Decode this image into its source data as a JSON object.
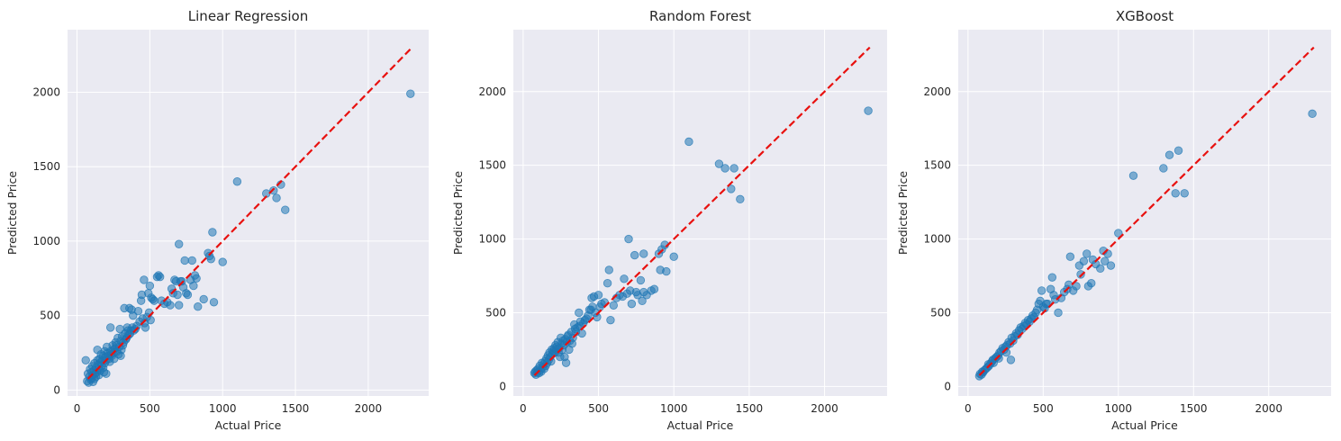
{
  "figure": {
    "background": "#ffffff",
    "plot_background": "#eaeaf2",
    "grid_color": "#ffffff",
    "point_color": "#1f77b4",
    "ideal_line_color": "#e8110f"
  },
  "chart_data": [
    {
      "type": "scatter",
      "title": "Linear Regression",
      "xlabel": "Actual Price",
      "ylabel": "Predicted Price",
      "xlim": [
        -65,
        2415
      ],
      "ylim": [
        -40,
        2420
      ],
      "xticks": [
        0,
        500,
        1000,
        1500,
        2000
      ],
      "yticks": [
        0,
        500,
        1000,
        1500,
        2000
      ],
      "grid": true,
      "reference_line": {
        "x": [
          75,
          2300
        ],
        "y": [
          75,
          2300
        ],
        "style": "dashed"
      },
      "points": [
        [
          60,
          200
        ],
        [
          70,
          60
        ],
        [
          75,
          110
        ],
        [
          80,
          50
        ],
        [
          85,
          90
        ],
        [
          90,
          140
        ],
        [
          95,
          70
        ],
        [
          100,
          120
        ],
        [
          100,
          80
        ],
        [
          105,
          160
        ],
        [
          110,
          55
        ],
        [
          110,
          100
        ],
        [
          115,
          130
        ],
        [
          120,
          75
        ],
        [
          120,
          180
        ],
        [
          125,
          110
        ],
        [
          130,
          150
        ],
        [
          130,
          90
        ],
        [
          135,
          120
        ],
        [
          140,
          270
        ],
        [
          140,
          200
        ],
        [
          145,
          170
        ],
        [
          150,
          140
        ],
        [
          150,
          100
        ],
        [
          155,
          210
        ],
        [
          160,
          185
        ],
        [
          160,
          130
        ],
        [
          165,
          240
        ],
        [
          170,
          160
        ],
        [
          175,
          200
        ],
        [
          180,
          150
        ],
        [
          180,
          230
        ],
        [
          185,
          120
        ],
        [
          190,
          260
        ],
        [
          190,
          180
        ],
        [
          195,
          220
        ],
        [
          200,
          200
        ],
        [
          200,
          110
        ],
        [
          205,
          290
        ],
        [
          210,
          250
        ],
        [
          215,
          230
        ],
        [
          220,
          210
        ],
        [
          225,
          190
        ],
        [
          230,
          260
        ],
        [
          230,
          420
        ],
        [
          235,
          240
        ],
        [
          240,
          230
        ],
        [
          245,
          300
        ],
        [
          250,
          270
        ],
        [
          250,
          250
        ],
        [
          255,
          210
        ],
        [
          260,
          280
        ],
        [
          265,
          320
        ],
        [
          270,
          300
        ],
        [
          275,
          260
        ],
        [
          280,
          350
        ],
        [
          285,
          240
        ],
        [
          290,
          290
        ],
        [
          295,
          410
        ],
        [
          300,
          330
        ],
        [
          300,
          230
        ],
        [
          305,
          270
        ],
        [
          310,
          360
        ],
        [
          315,
          300
        ],
        [
          320,
          320
        ],
        [
          325,
          550
        ],
        [
          330,
          380
        ],
        [
          335,
          340
        ],
        [
          340,
          350
        ],
        [
          345,
          420
        ],
        [
          350,
          400
        ],
        [
          355,
          370
        ],
        [
          360,
          550
        ],
        [
          365,
          380
        ],
        [
          370,
          400
        ],
        [
          375,
          540
        ],
        [
          380,
          420
        ],
        [
          385,
          500
        ],
        [
          390,
          400
        ],
        [
          400,
          410
        ],
        [
          410,
          430
        ],
        [
          420,
          530
        ],
        [
          430,
          460
        ],
        [
          440,
          600
        ],
        [
          445,
          640
        ],
        [
          450,
          480
        ],
        [
          460,
          740
        ],
        [
          465,
          450
        ],
        [
          470,
          420
        ],
        [
          480,
          490
        ],
        [
          490,
          650
        ],
        [
          495,
          520
        ],
        [
          500,
          700
        ],
        [
          505,
          470
        ],
        [
          510,
          620
        ],
        [
          520,
          610
        ],
        [
          530,
          600
        ],
        [
          550,
          760
        ],
        [
          560,
          770
        ],
        [
          570,
          760
        ],
        [
          580,
          600
        ],
        [
          600,
          580
        ],
        [
          620,
          590
        ],
        [
          640,
          570
        ],
        [
          650,
          680
        ],
        [
          660,
          650
        ],
        [
          670,
          740
        ],
        [
          680,
          730
        ],
        [
          690,
          640
        ],
        [
          700,
          980
        ],
        [
          700,
          570
        ],
        [
          710,
          730
        ],
        [
          720,
          730
        ],
        [
          730,
          690
        ],
        [
          740,
          870
        ],
        [
          750,
          650
        ],
        [
          760,
          640
        ],
        [
          780,
          740
        ],
        [
          790,
          870
        ],
        [
          800,
          700
        ],
        [
          810,
          770
        ],
        [
          820,
          750
        ],
        [
          830,
          560
        ],
        [
          870,
          610
        ],
        [
          900,
          920
        ],
        [
          910,
          900
        ],
        [
          920,
          880
        ],
        [
          930,
          1060
        ],
        [
          940,
          590
        ],
        [
          1000,
          860
        ],
        [
          1100,
          1400
        ],
        [
          1300,
          1320
        ],
        [
          1350,
          1340
        ],
        [
          1370,
          1290
        ],
        [
          1400,
          1380
        ],
        [
          1430,
          1210
        ],
        [
          2290,
          1990
        ]
      ]
    },
    {
      "type": "scatter",
      "title": "Random Forest",
      "xlabel": "Actual Price",
      "ylabel": "Predicted Price",
      "xlim": [
        -65,
        2415
      ],
      "ylim": [
        -65,
        2420
      ],
      "xticks": [
        0,
        500,
        1000,
        1500,
        2000
      ],
      "yticks": [
        0,
        500,
        1000,
        1500,
        2000
      ],
      "grid": true,
      "reference_line": {
        "x": [
          75,
          2300
        ],
        "y": [
          75,
          2300
        ],
        "style": "dashed"
      },
      "points": [
        [
          75,
          90
        ],
        [
          80,
          100
        ],
        [
          85,
          80
        ],
        [
          90,
          110
        ],
        [
          95,
          95
        ],
        [
          100,
          120
        ],
        [
          105,
          90
        ],
        [
          110,
          140
        ],
        [
          115,
          110
        ],
        [
          120,
          100
        ],
        [
          125,
          160
        ],
        [
          130,
          130
        ],
        [
          135,
          150
        ],
        [
          140,
          120
        ],
        [
          145,
          170
        ],
        [
          150,
          140
        ],
        [
          155,
          190
        ],
        [
          160,
          160
        ],
        [
          165,
          210
        ],
        [
          170,
          180
        ],
        [
          175,
          230
        ],
        [
          180,
          200
        ],
        [
          185,
          170
        ],
        [
          190,
          250
        ],
        [
          195,
          220
        ],
        [
          200,
          240
        ],
        [
          205,
          260
        ],
        [
          210,
          230
        ],
        [
          215,
          280
        ],
        [
          220,
          250
        ],
        [
          225,
          270
        ],
        [
          230,
          300
        ],
        [
          235,
          230
        ],
        [
          240,
          260
        ],
        [
          245,
          200
        ],
        [
          250,
          330
        ],
        [
          255,
          290
        ],
        [
          260,
          250
        ],
        [
          265,
          310
        ],
        [
          270,
          280
        ],
        [
          275,
          200
        ],
        [
          280,
          320
        ],
        [
          285,
          160
        ],
        [
          290,
          300
        ],
        [
          295,
          340
        ],
        [
          300,
          350
        ],
        [
          305,
          250
        ],
        [
          310,
          310
        ],
        [
          320,
          370
        ],
        [
          325,
          290
        ],
        [
          330,
          330
        ],
        [
          340,
          420
        ],
        [
          345,
          390
        ],
        [
          350,
          370
        ],
        [
          360,
          400
        ],
        [
          370,
          500
        ],
        [
          375,
          410
        ],
        [
          380,
          440
        ],
        [
          390,
          360
        ],
        [
          400,
          430
        ],
        [
          410,
          450
        ],
        [
          420,
          460
        ],
        [
          430,
          480
        ],
        [
          440,
          520
        ],
        [
          450,
          520
        ],
        [
          455,
          600
        ],
        [
          460,
          540
        ],
        [
          470,
          610
        ],
        [
          480,
          500
        ],
        [
          490,
          470
        ],
        [
          500,
          620
        ],
        [
          510,
          540
        ],
        [
          520,
          560
        ],
        [
          540,
          570
        ],
        [
          560,
          700
        ],
        [
          570,
          790
        ],
        [
          580,
          450
        ],
        [
          600,
          550
        ],
        [
          620,
          600
        ],
        [
          640,
          620
        ],
        [
          660,
          610
        ],
        [
          670,
          730
        ],
        [
          690,
          630
        ],
        [
          700,
          1000
        ],
        [
          710,
          650
        ],
        [
          720,
          560
        ],
        [
          740,
          890
        ],
        [
          750,
          640
        ],
        [
          760,
          620
        ],
        [
          780,
          720
        ],
        [
          790,
          580
        ],
        [
          800,
          640
        ],
        [
          800,
          900
        ],
        [
          820,
          620
        ],
        [
          850,
          650
        ],
        [
          870,
          660
        ],
        [
          900,
          900
        ],
        [
          910,
          790
        ],
        [
          920,
          930
        ],
        [
          940,
          960
        ],
        [
          950,
          780
        ],
        [
          1000,
          880
        ],
        [
          1100,
          1660
        ],
        [
          1300,
          1510
        ],
        [
          1340,
          1480
        ],
        [
          1380,
          1340
        ],
        [
          1400,
          1480
        ],
        [
          1440,
          1270
        ],
        [
          2290,
          1870
        ]
      ]
    },
    {
      "type": "scatter",
      "title": "XGBoost",
      "xlabel": "Actual Price",
      "ylabel": "Predicted Price",
      "xlim": [
        -65,
        2415
      ],
      "ylim": [
        -65,
        2420
      ],
      "xticks": [
        0,
        500,
        1000,
        1500,
        2000
      ],
      "yticks": [
        0,
        500,
        1000,
        1500,
        2000
      ],
      "grid": true,
      "reference_line": {
        "x": [
          75,
          2300
        ],
        "y": [
          75,
          2300
        ],
        "style": "dashed"
      },
      "points": [
        [
          75,
          70
        ],
        [
          80,
          85
        ],
        [
          90,
          80
        ],
        [
          95,
          100
        ],
        [
          100,
          95
        ],
        [
          110,
          110
        ],
        [
          120,
          120
        ],
        [
          130,
          130
        ],
        [
          135,
          150
        ],
        [
          140,
          140
        ],
        [
          150,
          155
        ],
        [
          160,
          170
        ],
        [
          165,
          180
        ],
        [
          170,
          160
        ],
        [
          180,
          190
        ],
        [
          190,
          200
        ],
        [
          200,
          210
        ],
        [
          205,
          190
        ],
        [
          210,
          230
        ],
        [
          220,
          240
        ],
        [
          230,
          260
        ],
        [
          240,
          250
        ],
        [
          250,
          270
        ],
        [
          255,
          230
        ],
        [
          260,
          280
        ],
        [
          270,
          300
        ],
        [
          280,
          290
        ],
        [
          285,
          180
        ],
        [
          290,
          330
        ],
        [
          300,
          310
        ],
        [
          310,
          340
        ],
        [
          320,
          360
        ],
        [
          330,
          350
        ],
        [
          340,
          380
        ],
        [
          350,
          400
        ],
        [
          360,
          390
        ],
        [
          370,
          410
        ],
        [
          380,
          430
        ],
        [
          390,
          420
        ],
        [
          400,
          450
        ],
        [
          410,
          440
        ],
        [
          420,
          460
        ],
        [
          430,
          480
        ],
        [
          440,
          470
        ],
        [
          450,
          500
        ],
        [
          460,
          520
        ],
        [
          470,
          560
        ],
        [
          480,
          580
        ],
        [
          490,
          650
        ],
        [
          500,
          540
        ],
        [
          510,
          530
        ],
        [
          520,
          560
        ],
        [
          530,
          560
        ],
        [
          550,
          660
        ],
        [
          560,
          740
        ],
        [
          570,
          620
        ],
        [
          580,
          590
        ],
        [
          600,
          500
        ],
        [
          620,
          600
        ],
        [
          640,
          640
        ],
        [
          660,
          660
        ],
        [
          670,
          690
        ],
        [
          680,
          880
        ],
        [
          700,
          650
        ],
        [
          720,
          680
        ],
        [
          740,
          820
        ],
        [
          750,
          760
        ],
        [
          770,
          850
        ],
        [
          790,
          900
        ],
        [
          800,
          680
        ],
        [
          820,
          700
        ],
        [
          830,
          860
        ],
        [
          850,
          830
        ],
        [
          880,
          800
        ],
        [
          900,
          920
        ],
        [
          910,
          850
        ],
        [
          930,
          900
        ],
        [
          950,
          820
        ],
        [
          1000,
          1040
        ],
        [
          1100,
          1430
        ],
        [
          1300,
          1480
        ],
        [
          1340,
          1570
        ],
        [
          1380,
          1310
        ],
        [
          1400,
          1600
        ],
        [
          1440,
          1310
        ],
        [
          2290,
          1850
        ]
      ]
    }
  ]
}
